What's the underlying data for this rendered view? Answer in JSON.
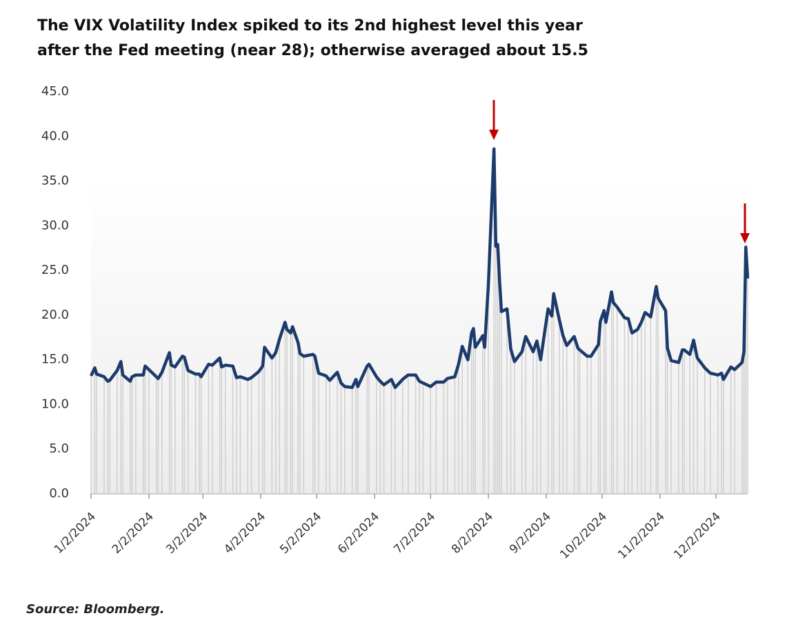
{
  "chart_data": {
    "type": "line",
    "title": "The VIX Volatility Index spiked to its 2nd highest level this year",
    "subtitle": "after the Fed meeting (near 28); otherwise averaged about 15.5",
    "source": "Source: Bloomberg.",
    "x": [
      "1/2/2024",
      "1/4/2024",
      "1/5/2024",
      "1/9/2024",
      "1/11/2024",
      "1/12/2024",
      "1/16/2024",
      "1/18/2024",
      "1/19/2024",
      "1/23/2024",
      "1/24/2024",
      "1/26/2024",
      "1/30/2024",
      "1/31/2024",
      "2/2/2024",
      "2/6/2024",
      "2/7/2024",
      "2/9/2024",
      "2/13/2024",
      "2/14/2024",
      "2/16/2024",
      "2/20/2024",
      "2/21/2024",
      "2/23/2024",
      "2/27/2024",
      "2/29/2024",
      "3/1/2024",
      "3/5/2024",
      "3/7/2024",
      "3/11/2024",
      "3/12/2024",
      "3/14/2024",
      "3/18/2024",
      "3/20/2024",
      "3/22/2024",
      "3/26/2024",
      "3/28/2024",
      "4/1/2024",
      "4/3/2024",
      "4/4/2024",
      "4/8/2024",
      "4/10/2024",
      "4/12/2024",
      "4/15/2024",
      "4/16/2024",
      "4/18/2024",
      "4/19/2024",
      "4/22/2024",
      "4/23/2024",
      "4/25/2024",
      "4/30/2024",
      "5/1/2024",
      "5/3/2024",
      "5/7/2024",
      "5/9/2024",
      "5/13/2024",
      "5/15/2024",
      "5/17/2024",
      "5/21/2024",
      "5/23/2024",
      "5/24/2024",
      "5/29/2024",
      "5/30/2024",
      "6/3/2024",
      "6/5/2024",
      "6/7/2024",
      "6/11/2024",
      "6/13/2024",
      "6/17/2024",
      "6/20/2024",
      "6/24/2024",
      "6/26/2024",
      "6/28/2024",
      "7/2/2024",
      "7/5/2024",
      "7/9/2024",
      "7/11/2024",
      "7/15/2024",
      "7/17/2024",
      "7/19/2024",
      "7/22/2024",
      "7/24/2024",
      "7/25/2024",
      "7/26/2024",
      "7/30/2024",
      "7/31/2024",
      "8/2/2024",
      "8/5/2024",
      "8/6/2024",
      "8/7/2024",
      "8/8/2024",
      "8/9/2024",
      "8/12/2024",
      "8/14/2024",
      "8/16/2024",
      "8/20/2024",
      "8/22/2024",
      "8/26/2024",
      "8/28/2024",
      "8/30/2024",
      "9/3/2024",
      "9/5/2024",
      "9/6/2024",
      "9/9/2024",
      "9/11/2024",
      "9/13/2024",
      "9/17/2024",
      "9/19/2024",
      "9/20/2024",
      "9/24/2024",
      "9/26/2024",
      "9/30/2024",
      "10/1/2024",
      "10/3/2024",
      "10/4/2024",
      "10/7/2024",
      "10/8/2024",
      "10/10/2024",
      "10/14/2024",
      "10/16/2024",
      "10/18/2024",
      "10/21/2024",
      "10/23/2024",
      "10/25/2024",
      "10/28/2024",
      "10/31/2024",
      "11/1/2024",
      "11/5/2024",
      "11/6/2024",
      "11/8/2024",
      "11/12/2024",
      "11/14/2024",
      "11/15/2024",
      "11/18/2024",
      "11/20/2024",
      "11/22/2024",
      "11/26/2024",
      "11/29/2024",
      "12/3/2024",
      "12/5/2024",
      "12/6/2024",
      "12/10/2024",
      "12/12/2024",
      "12/16/2024",
      "12/17/2024",
      "12/18/2024",
      "12/19/2024"
    ],
    "series": [
      {
        "name": "VIX",
        "color": "#1c3a6b",
        "values": [
          13.2,
          14.1,
          13.4,
          13.1,
          12.6,
          12.7,
          13.8,
          14.8,
          13.3,
          12.6,
          13.1,
          13.3,
          13.3,
          14.3,
          13.9,
          13.1,
          12.9,
          13.6,
          15.8,
          14.4,
          14.2,
          15.4,
          15.3,
          13.8,
          13.4,
          13.4,
          13.1,
          14.5,
          14.4,
          15.2,
          14.2,
          14.4,
          14.3,
          13.0,
          13.1,
          12.8,
          13.0,
          13.7,
          14.3,
          16.4,
          15.2,
          15.8,
          17.3,
          19.2,
          18.4,
          18.0,
          18.7,
          16.9,
          15.7,
          15.4,
          15.6,
          15.4,
          13.5,
          13.2,
          12.7,
          13.6,
          12.4,
          12.0,
          11.9,
          12.8,
          12.0,
          14.3,
          14.5,
          13.1,
          12.6,
          12.2,
          12.8,
          11.9,
          12.8,
          13.3,
          13.3,
          12.6,
          12.4,
          12.0,
          12.5,
          12.5,
          12.9,
          13.1,
          14.5,
          16.5,
          15.0,
          18.0,
          18.5,
          16.4,
          17.7,
          16.4,
          23.4,
          38.6,
          27.7,
          27.9,
          23.8,
          20.4,
          20.7,
          16.2,
          14.8,
          15.9,
          17.6,
          15.9,
          17.1,
          15.0,
          20.7,
          19.9,
          22.4,
          19.5,
          17.7,
          16.6,
          17.6,
          16.3,
          16.1,
          15.4,
          15.4,
          16.7,
          19.3,
          20.5,
          19.2,
          22.6,
          21.4,
          20.9,
          19.7,
          19.6,
          18.0,
          18.4,
          19.2,
          20.3,
          19.8,
          23.2,
          21.9,
          20.5,
          16.3,
          14.9,
          14.7,
          16.1,
          16.1,
          15.6,
          17.2,
          15.2,
          14.1,
          13.5,
          13.3,
          13.5,
          12.8,
          14.2,
          13.9,
          14.7,
          15.9,
          27.6,
          24.1
        ]
      }
    ],
    "xlim": [
      "1/2/2024",
      "12/19/2024"
    ],
    "xticks": [
      "1/2/2024",
      "2/2/2024",
      "3/2/2024",
      "4/2/2024",
      "5/2/2024",
      "6/2/2024",
      "7/2/2024",
      "8/2/2024",
      "9/2/2024",
      "10/2/2024",
      "11/2/2024",
      "12/2/2024"
    ],
    "ylim": [
      0,
      45
    ],
    "yticks": [
      {
        "value": 0,
        "label": "0.0"
      },
      {
        "value": 5,
        "label": "5.0"
      },
      {
        "value": 10,
        "label": "10.0"
      },
      {
        "value": 15,
        "label": "15.0"
      },
      {
        "value": 20,
        "label": "20.0"
      },
      {
        "value": 25,
        "label": "25.0"
      },
      {
        "value": 30,
        "label": "30.0"
      },
      {
        "value": 35,
        "label": "35.0"
      },
      {
        "value": 40,
        "label": "40.0"
      },
      {
        "value": 45,
        "label": "45.0"
      }
    ],
    "drop_line_color": "#cfcfcf"
  }
}
